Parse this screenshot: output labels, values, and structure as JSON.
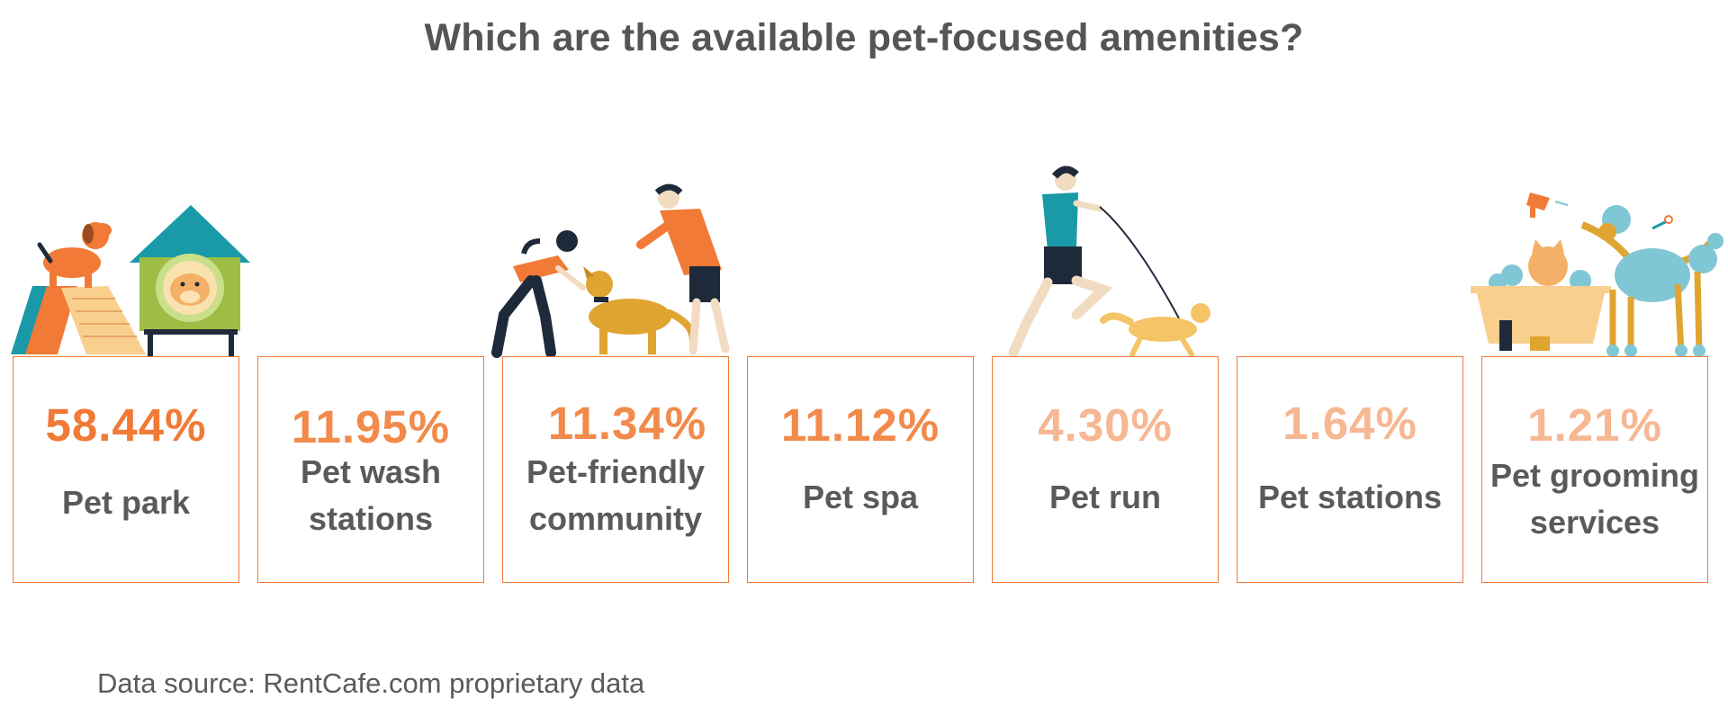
{
  "title": "Which are the available pet-focused amenities?",
  "source": "Data source: RentCafe.com proprietary data",
  "colors": {
    "accent_strong": "#f07a36",
    "accent_medium": "#f28a4b",
    "accent_light": "#f6b792",
    "border": "#f07a36",
    "text": "#555555"
  },
  "chart_data": {
    "type": "bar",
    "title": "Which are the available pet-focused amenities?",
    "categories": [
      "Pet park",
      "Pet wash stations",
      "Pet-friendly community",
      "Pet spa",
      "Pet run",
      "Pet stations",
      "Pet grooming services"
    ],
    "values": [
      58.44,
      11.95,
      11.34,
      11.12,
      4.3,
      1.64,
      1.21
    ],
    "value_labels": [
      "58.44%",
      "11.95%",
      "11.34%",
      "11.12%",
      "4.30%",
      "1.64%",
      "1.21%"
    ],
    "unit": "%",
    "label_lines": [
      [
        "Pet park"
      ],
      [
        "Pet wash",
        "stations"
      ],
      [
        "Pet-friendly",
        "community"
      ],
      [
        "Pet spa"
      ],
      [
        "Pet run"
      ],
      [
        "Pet stations"
      ],
      [
        "Pet grooming",
        "services"
      ]
    ],
    "value_colors": [
      "#f07a36",
      "#f28a4b",
      "#f28a4b",
      "#f28a4b",
      "#f6b792",
      "#f6b792",
      "#f6b792"
    ]
  },
  "illustrations": [
    "dog-agility-ramp-and-doghouse-icon",
    "people-greeting-dog-icon",
    "man-running-with-dog-icon",
    "pet-bath-and-grooming-icon"
  ]
}
